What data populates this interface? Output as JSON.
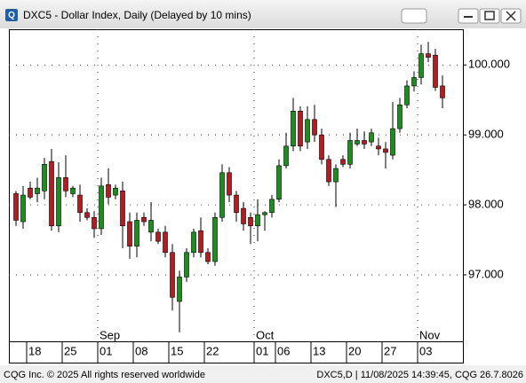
{
  "chart_data": {
    "type": "candlestick",
    "title": "DXC5 - Dollar Index, Daily (Delayed by 10 mins)",
    "footer_left": "CQG Inc. © 2025 All rights reserved worldwide",
    "footer_right": "DXC5,D | 11/08/2025 14:39:45, CQG 26.7.8026",
    "categories": [
      null,
      null,
      "18",
      null,
      null,
      null,
      null,
      "25",
      null,
      null,
      null,
      null,
      "01",
      null,
      null,
      null,
      null,
      "08",
      null,
      null,
      null,
      null,
      "15",
      null,
      null,
      null,
      null,
      "22",
      null,
      null,
      null,
      null,
      null,
      null,
      "01",
      null,
      null,
      "06",
      null,
      null,
      null,
      null,
      "13",
      null,
      null,
      null,
      null,
      "20",
      null,
      null,
      null,
      null,
      "27",
      null,
      null,
      null,
      null,
      "03",
      null,
      null,
      null
    ],
    "months": [
      "Sep",
      "Oct",
      "Nov"
    ],
    "open": [
      98.16,
      97.76,
      98.24,
      98.16,
      98.2,
      98.62,
      97.7,
      98.39,
      98.16,
      98.14,
      97.89,
      97.82,
      97.66,
      98.29,
      98.14,
      98.2,
      97.76,
      97.41,
      97.82,
      97.61,
      97.61,
      97.61,
      97.32,
      96.62,
      96.97,
      97.32,
      97.63,
      97.32,
      97.19,
      97.82,
      98.46,
      98.14,
      97.95,
      97.82,
      97.7,
      97.86,
      97.89,
      98.08,
      98.56,
      98.84,
      99.34,
      98.9,
      99.22,
      99.0,
      98.65,
      98.33,
      98.65,
      98.58,
      98.87,
      98.92,
      98.9,
      98.84,
      98.8,
      98.71,
      99.09,
      99.43,
      99.7,
      99.82,
      100.16,
      100.14,
      99.7
    ],
    "high": [
      98.2,
      98.27,
      98.33,
      98.39,
      98.67,
      98.8,
      98.61,
      98.71,
      98.27,
      98.29,
      97.95,
      97.91,
      98.39,
      98.52,
      98.29,
      98.33,
      97.89,
      97.89,
      97.89,
      98.04,
      97.66,
      97.7,
      97.44,
      97.06,
      97.38,
      97.66,
      97.82,
      97.38,
      97.89,
      98.58,
      98.54,
      98.2,
      98.04,
      97.89,
      98.08,
      97.91,
      98.14,
      98.65,
      99.03,
      99.53,
      99.41,
      99.41,
      99.43,
      99.09,
      98.71,
      98.58,
      98.71,
      99.03,
      99.09,
      99.05,
      99.09,
      98.96,
      98.9,
      99.47,
      99.53,
      99.78,
      99.91,
      100.29,
      100.33,
      100.23,
      99.85
    ],
    "low": [
      97.7,
      97.66,
      98.08,
      98.04,
      98.08,
      97.63,
      97.61,
      98.11,
      98.11,
      97.76,
      97.78,
      97.53,
      97.57,
      98.01,
      98.08,
      97.38,
      97.23,
      97.25,
      97.7,
      97.48,
      97.44,
      97.25,
      96.49,
      96.18,
      96.9,
      97.25,
      97.25,
      97.15,
      97.13,
      97.76,
      98.04,
      97.76,
      97.63,
      97.44,
      97.48,
      97.63,
      97.82,
      98.04,
      98.52,
      98.77,
      98.77,
      98.8,
      98.9,
      98.58,
      98.27,
      97.97,
      98.54,
      98.52,
      98.84,
      98.8,
      98.84,
      98.71,
      98.52,
      98.65,
      99.03,
      99.38,
      99.62,
      99.72,
      100.04,
      99.63,
      99.38
    ],
    "close": [
      97.78,
      98.14,
      98.11,
      98.24,
      98.58,
      97.7,
      98.39,
      98.2,
      98.24,
      97.89,
      97.82,
      97.66,
      98.27,
      98.11,
      98.24,
      97.7,
      97.41,
      97.78,
      97.76,
      97.78,
      97.48,
      97.32,
      96.68,
      96.97,
      97.32,
      97.61,
      97.32,
      97.19,
      97.82,
      98.46,
      98.14,
      97.89,
      97.73,
      97.7,
      97.86,
      97.89,
      98.08,
      98.56,
      98.84,
      99.34,
      98.84,
      99.22,
      99.0,
      98.65,
      98.33,
      98.52,
      98.58,
      98.92,
      98.92,
      98.87,
      99.03,
      98.8,
      98.75,
      99.09,
      99.43,
      99.7,
      99.82,
      100.16,
      100.11,
      99.68,
      99.53
    ],
    "up_color": "#1e8c1e",
    "down_color": "#b01e24",
    "ylim": [
      96.05,
      100.51
    ],
    "yticks": [
      {
        "value": 97,
        "label": "97.000"
      },
      {
        "value": 98,
        "label": "98.000"
      },
      {
        "value": 99,
        "label": "99.000"
      },
      {
        "value": 100,
        "label": "100.000"
      }
    ],
    "grid": true
  }
}
